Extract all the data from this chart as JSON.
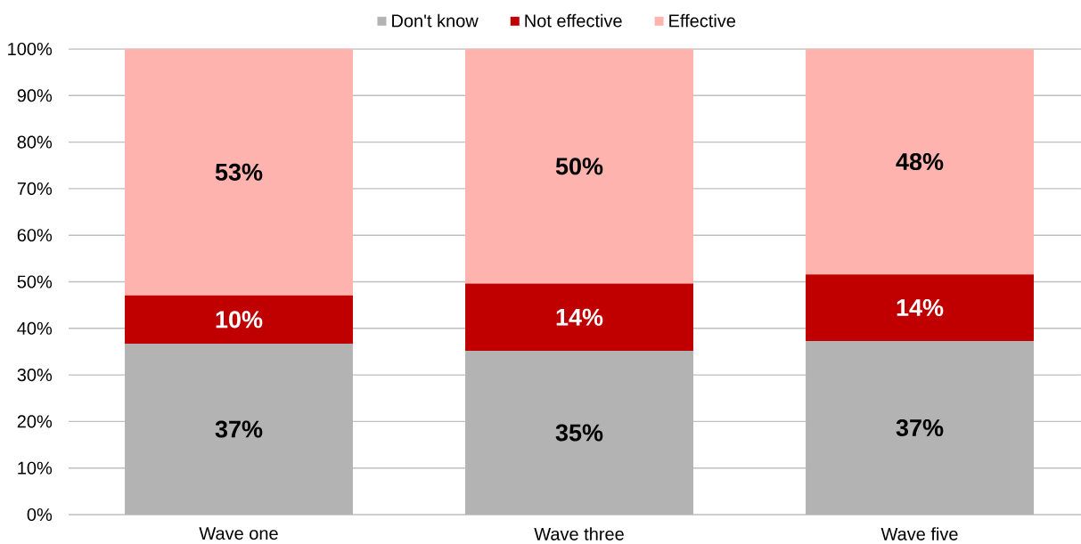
{
  "chart_data": {
    "type": "bar",
    "stacked": true,
    "categories": [
      "Wave one",
      "Wave three",
      "Wave five"
    ],
    "series": [
      {
        "name": "Don't know",
        "color": "#b3b3b3",
        "values": [
          36.7,
          35.2,
          37.3
        ],
        "value_labels": [
          "37%",
          "35%",
          "37%"
        ]
      },
      {
        "name": "Not effective",
        "color": "#c00000",
        "values": [
          10.4,
          14.4,
          14.3
        ],
        "value_labels": [
          "10%",
          "14%",
          "14%"
        ]
      },
      {
        "name": "Effective",
        "color": "#ffb3ae",
        "values": [
          52.9,
          50.4,
          48.4
        ],
        "value_labels": [
          "53%",
          "50%",
          "48%"
        ]
      }
    ],
    "ylim": [
      0,
      100
    ],
    "yticks": [
      {
        "value": 0,
        "label": "0%"
      },
      {
        "value": 10,
        "label": "10%"
      },
      {
        "value": 20,
        "label": "20%"
      },
      {
        "value": 30,
        "label": "30%"
      },
      {
        "value": 40,
        "label": "40%"
      },
      {
        "value": 50,
        "label": "50%"
      },
      {
        "value": 60,
        "label": "60%"
      },
      {
        "value": 70,
        "label": "70%"
      },
      {
        "value": 80,
        "label": "80%"
      },
      {
        "value": 90,
        "label": "90%"
      },
      {
        "value": 100,
        "label": "100%"
      }
    ],
    "grid": "y",
    "legend": "top"
  }
}
